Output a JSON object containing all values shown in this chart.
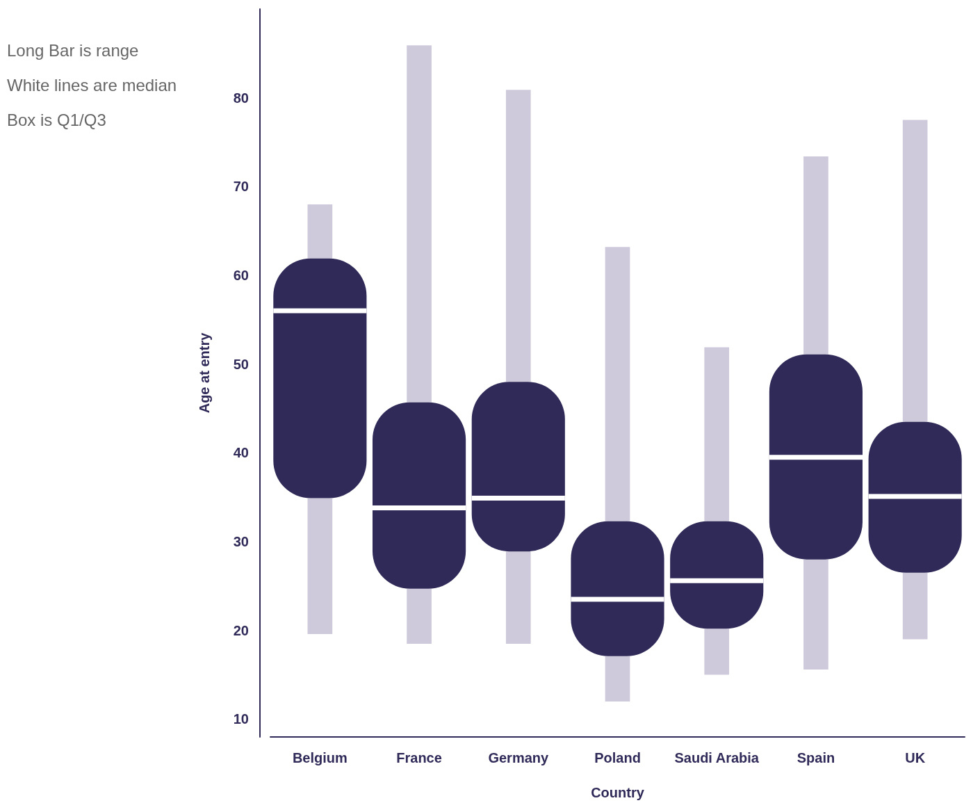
{
  "chart_data": {
    "type": "box",
    "xlabel": "Country",
    "ylabel": "Age at entry",
    "annotations": [
      "Long Bar is range",
      "White lines are median",
      "Box is Q1/Q3"
    ],
    "categories": [
      "Belgium",
      "France",
      "Germany",
      "Poland",
      "Saudi Arabia",
      "Spain",
      "UK"
    ],
    "color": "#2f2a58",
    "boxes": [
      {
        "low": 19.6,
        "q1": 34.9,
        "median": 56,
        "q3": 61.9,
        "high": 68
      },
      {
        "low": 18.5,
        "q1": 24.7,
        "median": 33.8,
        "q3": 45.7,
        "high": 85.9
      },
      {
        "low": 18.5,
        "q1": 28.9,
        "median": 34.9,
        "q3": 48,
        "high": 80.9
      },
      {
        "low": 12,
        "q1": 17.1,
        "median": 23.5,
        "q3": 32.3,
        "high": 63.2
      },
      {
        "low": 15,
        "q1": 20.2,
        "median": 25.6,
        "q3": 32.3,
        "high": 51.9
      },
      {
        "low": 15.6,
        "q1": 28,
        "median": 39.5,
        "q3": 51.1,
        "high": 73.4
      },
      {
        "low": 19,
        "q1": 26.5,
        "median": 35.1,
        "q3": 43.5,
        "high": 77.5
      }
    ],
    "ylim": [
      8,
      90
    ],
    "yticks": [
      10,
      20,
      30,
      40,
      50,
      60,
      70,
      80
    ],
    "grid": false
  }
}
